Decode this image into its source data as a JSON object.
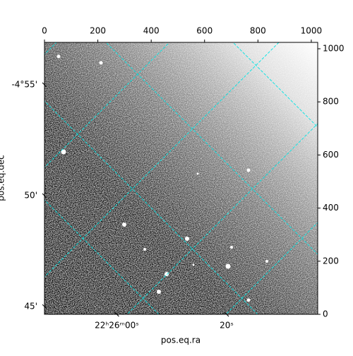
{
  "chart_data": {
    "type": "image",
    "x_label": "pos.eq.ra",
    "y_label": "pos.eq.dec",
    "xlim": [
      0,
      1024
    ],
    "xticks": [
      0,
      200,
      400,
      600,
      800,
      1000
    ],
    "ylim": [
      0,
      1024
    ],
    "yticks": [
      0,
      200,
      400,
      600,
      800,
      1000
    ],
    "ra_lim": [
      22.42967,
      22.4435
    ],
    "ra_ticks": [
      {
        "value": 22.43333,
        "label": "22ʰ26ᵐ00ˢ"
      },
      {
        "value": 22.43889,
        "label": "20ˢ"
      }
    ],
    "dec_lim": [
      -4.7442,
      -4.9485
    ],
    "dec_ticks": [
      {
        "value": -4.91667,
        "label": "-4°55'"
      },
      {
        "value": -4.83333,
        "label": "50'"
      },
      {
        "value": -4.75,
        "label": "45'"
      }
    ],
    "grid_color": "#00e5e5"
  }
}
